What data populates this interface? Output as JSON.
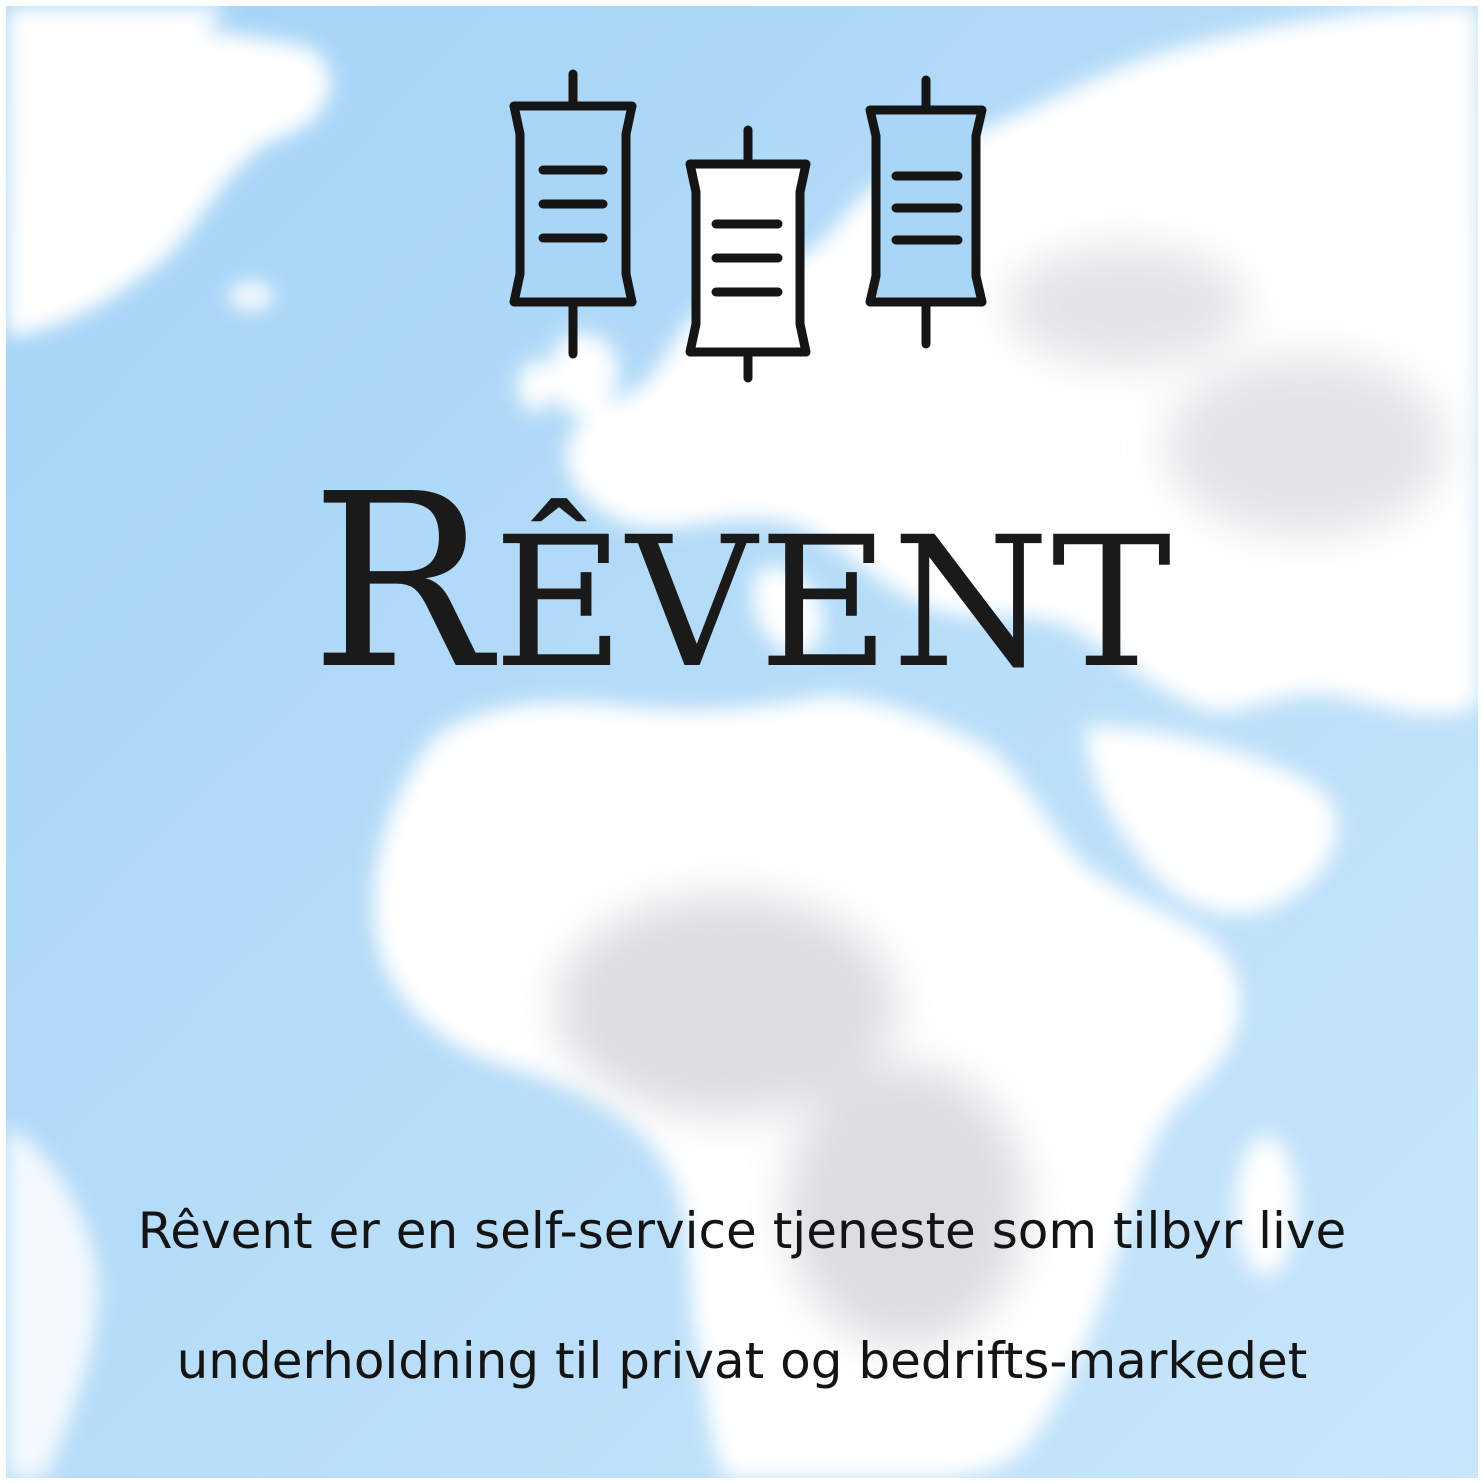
{
  "brand": {
    "name_first_letter": "R",
    "name_rest": "êvent",
    "logo_icon": "hanging-lanterns-icon",
    "background_icon": "cloud-world-map-icon"
  },
  "tagline": {
    "line1": "Rêvent er en self-service tjeneste som tilbyr live",
    "line2": "underholdning til privat og bedrifts-markedet"
  },
  "colors": {
    "sky": "#a9d6f7",
    "cloud": "#ffffff",
    "lantern_fill": "#a9d6f7",
    "lantern_stroke": "#151515",
    "text": "#141414"
  }
}
